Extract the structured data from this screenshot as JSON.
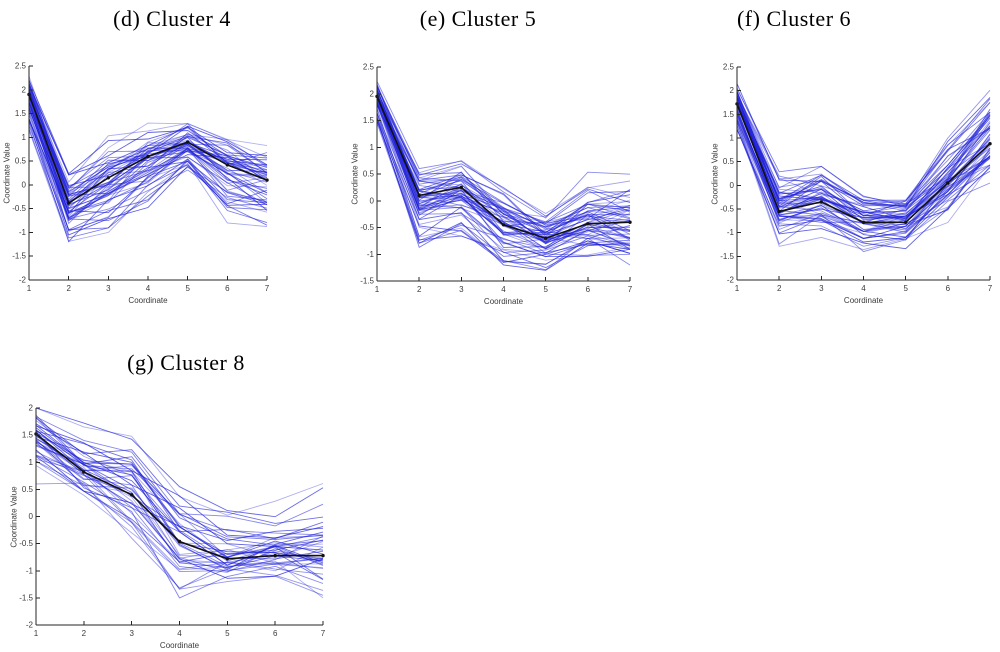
{
  "figure": {
    "background": "#ffffff",
    "description": "Cluster trajectory plots"
  },
  "chart_data": [
    {
      "type": "line",
      "title": "(d) Cluster 4",
      "xlabel": "Coordinate",
      "ylabel": "Coordinate Value",
      "x": [
        1,
        2,
        3,
        4,
        5,
        6,
        7
      ],
      "xlim": [
        1,
        7
      ],
      "ylim": [
        -2,
        2.5
      ],
      "xticks": [
        1,
        2,
        3,
        4,
        5,
        6,
        7
      ],
      "yticks": [
        -2,
        -1.5,
        -1,
        -0.5,
        0,
        0.5,
        1,
        1.5,
        2,
        2.5
      ],
      "grid": false,
      "centroid": [
        1.9,
        -0.38,
        0.15,
        0.6,
        0.9,
        0.42,
        0.1
      ],
      "envelope_low": [
        1.1,
        -1.3,
        -1.0,
        -0.5,
        0.2,
        -0.8,
        -0.9
      ],
      "envelope_high": [
        2.3,
        0.35,
        1.1,
        1.3,
        1.4,
        1.0,
        1.0
      ],
      "n_member_lines": 55,
      "member_color": "#2021d8",
      "centroid_color": "#111111"
    },
    {
      "type": "line",
      "title": "(e) Cluster 5",
      "xlabel": "Coordinate",
      "ylabel": "Coordinate Value",
      "x": [
        1,
        2,
        3,
        4,
        5,
        6,
        7
      ],
      "xlim": [
        1,
        7
      ],
      "ylim": [
        -1.5,
        2.5
      ],
      "xticks": [
        1,
        2,
        3,
        4,
        5,
        6,
        7
      ],
      "yticks": [
        -1.5,
        -1,
        -0.5,
        0,
        0.5,
        1,
        1.5,
        2,
        2.5
      ],
      "grid": false,
      "centroid": [
        1.95,
        0.1,
        0.25,
        -0.45,
        -0.7,
        -0.43,
        -0.4
      ],
      "envelope_low": [
        1.45,
        -1.05,
        -0.75,
        -1.2,
        -1.3,
        -1.05,
        -1.2
      ],
      "envelope_high": [
        2.3,
        0.6,
        0.85,
        0.55,
        -0.05,
        0.7,
        0.7
      ],
      "n_member_lines": 60,
      "member_color": "#2021d8",
      "centroid_color": "#111111"
    },
    {
      "type": "line",
      "title": "(f) Cluster 6",
      "xlabel": "Coordinate",
      "ylabel": "Coordinate Value",
      "x": [
        1,
        2,
        3,
        4,
        5,
        6,
        7
      ],
      "xlim": [
        1,
        7
      ],
      "ylim": [
        -2,
        2.5
      ],
      "xticks": [
        1,
        2,
        3,
        4,
        5,
        6,
        7
      ],
      "yticks": [
        -2,
        -1.5,
        -1,
        -0.5,
        0,
        0.5,
        1,
        1.5,
        2,
        2.5
      ],
      "grid": false,
      "centroid": [
        1.72,
        -0.55,
        -0.35,
        -0.78,
        -0.78,
        0.05,
        0.88
      ],
      "envelope_low": [
        1.0,
        -1.3,
        -1.1,
        -1.4,
        -1.35,
        -0.9,
        0.05
      ],
      "envelope_high": [
        2.15,
        0.3,
        0.4,
        -0.1,
        -0.2,
        1.0,
        2.1
      ],
      "n_member_lines": 55,
      "member_color": "#2021d8",
      "centroid_color": "#111111"
    },
    {
      "type": "line",
      "title": "(g) Cluster 8",
      "xlabel": "Coordinate",
      "ylabel": "Coordinate Value",
      "x": [
        1,
        2,
        3,
        4,
        5,
        6,
        7
      ],
      "xlim": [
        1,
        7
      ],
      "ylim": [
        -2,
        2
      ],
      "xticks": [
        1,
        2,
        3,
        4,
        5,
        6,
        7
      ],
      "yticks": [
        -2,
        -1.5,
        -1,
        -0.5,
        0,
        0.5,
        1,
        1.5,
        2
      ],
      "grid": false,
      "centroid": [
        1.52,
        0.82,
        0.4,
        -0.46,
        -0.78,
        -0.72,
        -0.72
      ],
      "envelope_low": [
        0.6,
        0.3,
        -0.4,
        -1.5,
        -1.2,
        -1.1,
        -1.5
      ],
      "envelope_high": [
        2.0,
        1.75,
        1.65,
        0.55,
        0.25,
        0.3,
        0.85
      ],
      "n_member_lines": 42,
      "member_color": "#2021d8",
      "centroid_color": "#111111"
    }
  ]
}
